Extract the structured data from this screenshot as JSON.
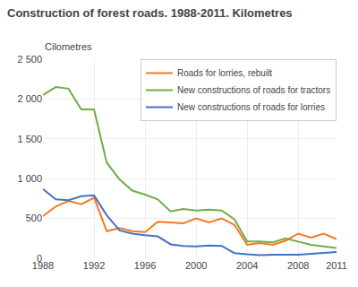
{
  "chart_data": {
    "type": "line",
    "title": "Construction of forest roads. 1988-2011. Kilometres",
    "y_label": "Cilometres",
    "x": [
      1988,
      1989,
      1990,
      1991,
      1992,
      1993,
      1994,
      1995,
      1996,
      1997,
      1998,
      1999,
      2000,
      2001,
      2002,
      2003,
      2004,
      2005,
      2006,
      2007,
      2008,
      2009,
      2010,
      2011
    ],
    "series": [
      {
        "name": "Roads for lorries, rebuilt",
        "color": "#f47920",
        "values": [
          530,
          650,
          720,
          680,
          760,
          340,
          380,
          340,
          330,
          460,
          450,
          440,
          500,
          450,
          500,
          420,
          170,
          190,
          170,
          220,
          310,
          260,
          310,
          240
        ]
      },
      {
        "name": "New constructions of roads for tractors",
        "color": "#70ad47",
        "values": [
          2050,
          2150,
          2130,
          1870,
          1870,
          1200,
          990,
          850,
          800,
          740,
          590,
          620,
          600,
          610,
          600,
          490,
          210,
          210,
          200,
          250,
          210,
          170,
          150,
          130
        ]
      },
      {
        "name": "New constructions of roads for lorries",
        "color": "#4472c4",
        "values": [
          870,
          740,
          730,
          780,
          790,
          540,
          350,
          310,
          290,
          275,
          175,
          155,
          150,
          160,
          155,
          65,
          50,
          40,
          45,
          45,
          45,
          55,
          70,
          80
        ]
      }
    ],
    "xlim": [
      1988,
      2011
    ],
    "xticks": [
      1988,
      1992,
      1996,
      2000,
      2004,
      2008,
      2011
    ],
    "ylim": [
      0,
      2500
    ],
    "yticks": [
      0,
      500,
      {
        "value": 1000,
        "label": "1 000"
      },
      {
        "value": 1500,
        "label": "1 500"
      },
      {
        "value": 2000,
        "label": "2 000"
      },
      {
        "value": 2500,
        "label": "2 500"
      }
    ],
    "grid": true,
    "legend": "upper right"
  }
}
